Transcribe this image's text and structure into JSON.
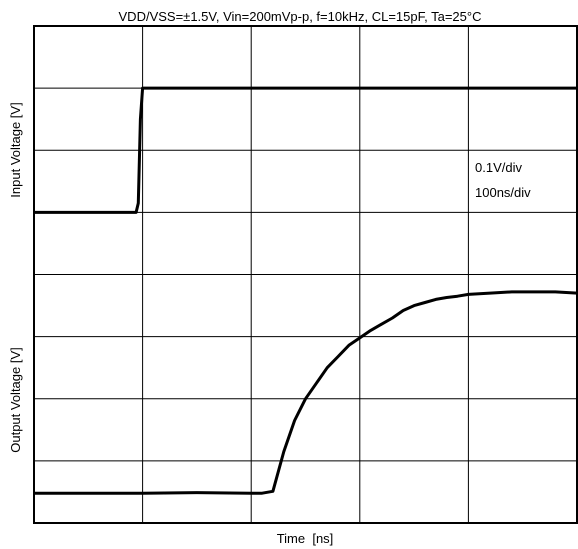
{
  "chart_data": {
    "type": "line",
    "title": "VDD/VSS=±1.5V, Vin=200mVp-p, f=10kHz, CL=15pF, Ta=25°C",
    "xlabel": "Time  [ns]",
    "ylabel_top": "Input Voltage [V]",
    "ylabel_bottom": "Output Voltage [V]",
    "annotations": [
      "0.1V/div",
      "100ns/div"
    ],
    "grid": true,
    "x_divisions": 5,
    "y_divisions": 8,
    "x_unit_per_div": 100,
    "series": [
      {
        "name": "Input Voltage",
        "color": "#000000",
        "x_div": [
          0,
          0.94,
          0.96,
          0.98,
          1.0,
          5.0
        ],
        "y_div": [
          5.0,
          5.0,
          5.15,
          6.5,
          7.0,
          7.0
        ]
      },
      {
        "name": "Output Voltage",
        "color": "#000000",
        "x_div": [
          0,
          0.5,
          1.0,
          1.5,
          2.0,
          2.1,
          2.2,
          2.3,
          2.4,
          2.5,
          2.6,
          2.7,
          2.8,
          2.9,
          3.0,
          3.1,
          3.2,
          3.3,
          3.4,
          3.5,
          3.6,
          3.7,
          3.8,
          3.9,
          4.0,
          4.2,
          4.4,
          4.6,
          4.8,
          5.0
        ],
        "y_div": [
          0.48,
          0.48,
          0.48,
          0.49,
          0.48,
          0.48,
          0.51,
          1.15,
          1.65,
          2.0,
          2.25,
          2.5,
          2.68,
          2.86,
          2.98,
          3.1,
          3.2,
          3.3,
          3.42,
          3.5,
          3.55,
          3.6,
          3.63,
          3.65,
          3.68,
          3.7,
          3.72,
          3.72,
          3.72,
          3.7
        ]
      }
    ]
  }
}
